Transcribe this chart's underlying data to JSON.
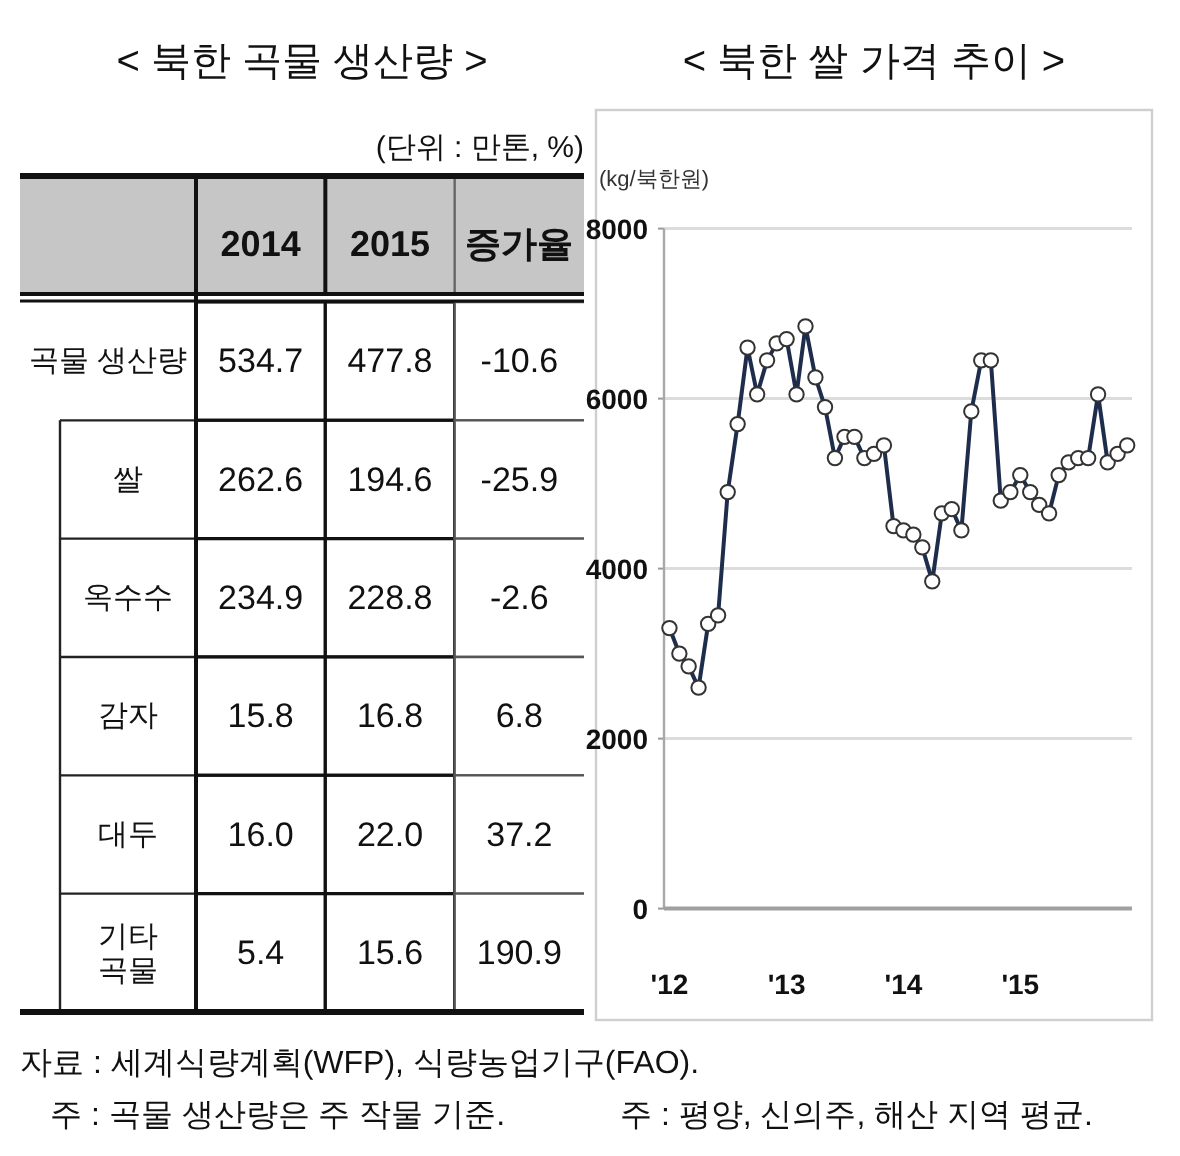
{
  "chart_data": [
    {
      "type": "heatmap",
      "title": "< 북한 곡물 생산량 >",
      "subtitle": "(단위 : 만톤, %)",
      "categories": [
        "2014",
        "2015",
        "증가율"
      ],
      "y_categories": [
        "곡물 생산량",
        "쌀",
        "옥수수",
        "감자",
        "대두",
        "기타 곡물"
      ],
      "cells": [
        [
          534.7,
          477.8,
          -10.6
        ],
        [
          262.6,
          194.6,
          -25.9
        ],
        [
          234.9,
          228.8,
          -2.6
        ],
        [
          15.8,
          16.8,
          6.8
        ],
        [
          16.0,
          22.0,
          37.2
        ],
        [
          5.4,
          15.6,
          190.9
        ]
      ],
      "cell_labels": [
        [
          "534.7",
          "477.8",
          "-10.6"
        ],
        [
          "262.6",
          "194.6",
          "-25.9"
        ],
        [
          "234.9",
          "228.8",
          "-2.6"
        ],
        [
          "15.8",
          "16.8",
          "6.8"
        ],
        [
          "16.0",
          "22.0",
          "37.2"
        ],
        [
          "5.4",
          "15.6",
          "190.9"
        ]
      ],
      "data_labels": true,
      "annotations": [
        "자료 : 세계식량계획(WFP), 식량농업기구(FAO).",
        "주 : 곡물 생산량은 주 작물 기준."
      ]
    },
    {
      "type": "line",
      "title": "< 북한 쌀 가격 추이 >",
      "ylabel": "(kg/북한원)",
      "x": [
        "2012-01",
        "2012-02",
        "2012-03",
        "2012-04",
        "2012-05",
        "2012-06",
        "2012-07",
        "2012-08",
        "2012-09",
        "2012-10",
        "2012-11",
        "2012-12",
        "2013-01",
        "2013-02",
        "2013-03",
        "2013-04",
        "2013-05",
        "2013-06",
        "2013-07",
        "2013-08",
        "2013-09",
        "2013-10",
        "2013-11",
        "2013-12",
        "2014-01",
        "2014-02",
        "2014-03",
        "2014-04",
        "2014-05",
        "2014-06",
        "2014-07",
        "2014-08",
        "2014-09",
        "2014-10",
        "2014-11",
        "2014-12",
        "2015-01",
        "2015-02",
        "2015-03",
        "2015-04",
        "2015-05",
        "2015-06",
        "2015-07",
        "2015-08",
        "2015-09",
        "2015-10",
        "2015-11",
        "2015-12"
      ],
      "values": [
        3300,
        3000,
        2850,
        2600,
        3350,
        3450,
        4900,
        5700,
        6600,
        6050,
        6450,
        6650,
        6700,
        6050,
        6850,
        6250,
        5900,
        5300,
        5550,
        5550,
        5300,
        5350,
        5450,
        4500,
        4450,
        4400,
        4250,
        3850,
        4650,
        4700,
        4450,
        5850,
        6450,
        6450,
        4800,
        4900,
        5100,
        4900,
        4750,
        4650,
        5100,
        5250,
        5300,
        5300,
        6050,
        5250,
        5350,
        5450
      ],
      "color": "#1f2d4d",
      "marker": "circle",
      "line_style": "solid",
      "xlim": [
        "2011-12-15",
        "2015-12-16"
      ],
      "xticks": [
        {
          "value": "2012-01",
          "label": "'12"
        },
        {
          "value": "2013-01",
          "label": "'13"
        },
        {
          "value": "2014-01",
          "label": "'14"
        },
        {
          "value": "2015-01",
          "label": "'15"
        }
      ],
      "ylim": [
        0,
        8000
      ],
      "yticks": [
        0,
        2000,
        4000,
        6000,
        8000
      ],
      "grid": "y",
      "annotations": [
        "주 : 평양, 신의주, 해산 지역 평균."
      ]
    }
  ]
}
